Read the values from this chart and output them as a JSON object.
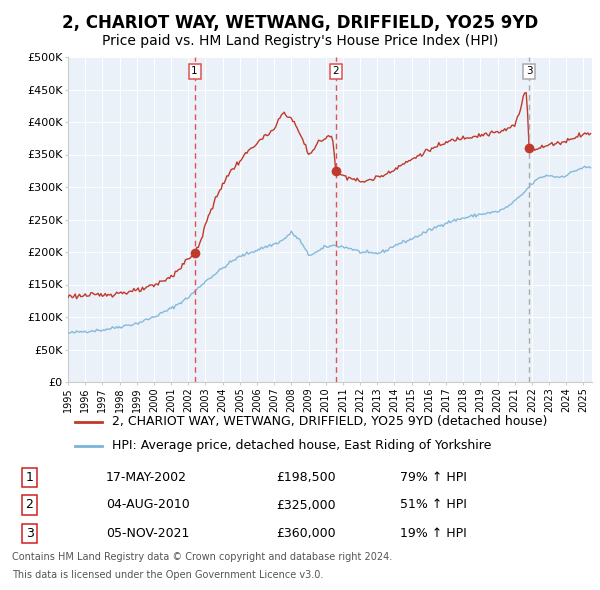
{
  "title": "2, CHARIOT WAY, WETWANG, DRIFFIELD, YO25 9YD",
  "subtitle": "Price paid vs. HM Land Registry's House Price Index (HPI)",
  "legend_line1": "2, CHARIOT WAY, WETWANG, DRIFFIELD, YO25 9YD (detached house)",
  "legend_line2": "HPI: Average price, detached house, East Riding of Yorkshire",
  "footer1": "Contains HM Land Registry data © Crown copyright and database right 2024.",
  "footer2": "This data is licensed under the Open Government Licence v3.0.",
  "sales": [
    {
      "num": 1,
      "date": "17-MAY-2002",
      "date_x": 2002.37,
      "price": 198500,
      "pct": "79%",
      "dir": "↑"
    },
    {
      "num": 2,
      "date": "04-AUG-2010",
      "date_x": 2010.59,
      "price": 325000,
      "pct": "51%",
      "dir": "↑"
    },
    {
      "num": 3,
      "date": "05-NOV-2021",
      "date_x": 2021.84,
      "price": 360000,
      "pct": "19%",
      "dir": "↑"
    }
  ],
  "hpi_color": "#7ab4d8",
  "price_color": "#c0392b",
  "vline_color_red": "#e05050",
  "vline_color_grey": "#aaaaaa",
  "background_plot": "#eaf1f8",
  "grid_color": "#ffffff",
  "ylim": [
    0,
    500000
  ],
  "xlim": [
    1995.0,
    2025.5
  ],
  "yticks": [
    0,
    50000,
    100000,
    150000,
    200000,
    250000,
    300000,
    350000,
    400000,
    450000,
    500000
  ],
  "ytick_labels": [
    "£0",
    "£50K",
    "£100K",
    "£150K",
    "£200K",
    "£250K",
    "£300K",
    "£350K",
    "£400K",
    "£450K",
    "£500K"
  ],
  "title_fontsize": 12,
  "subtitle_fontsize": 10,
  "tick_fontsize": 8,
  "legend_fontsize": 9,
  "table_fontsize": 9,
  "footer_fontsize": 7
}
